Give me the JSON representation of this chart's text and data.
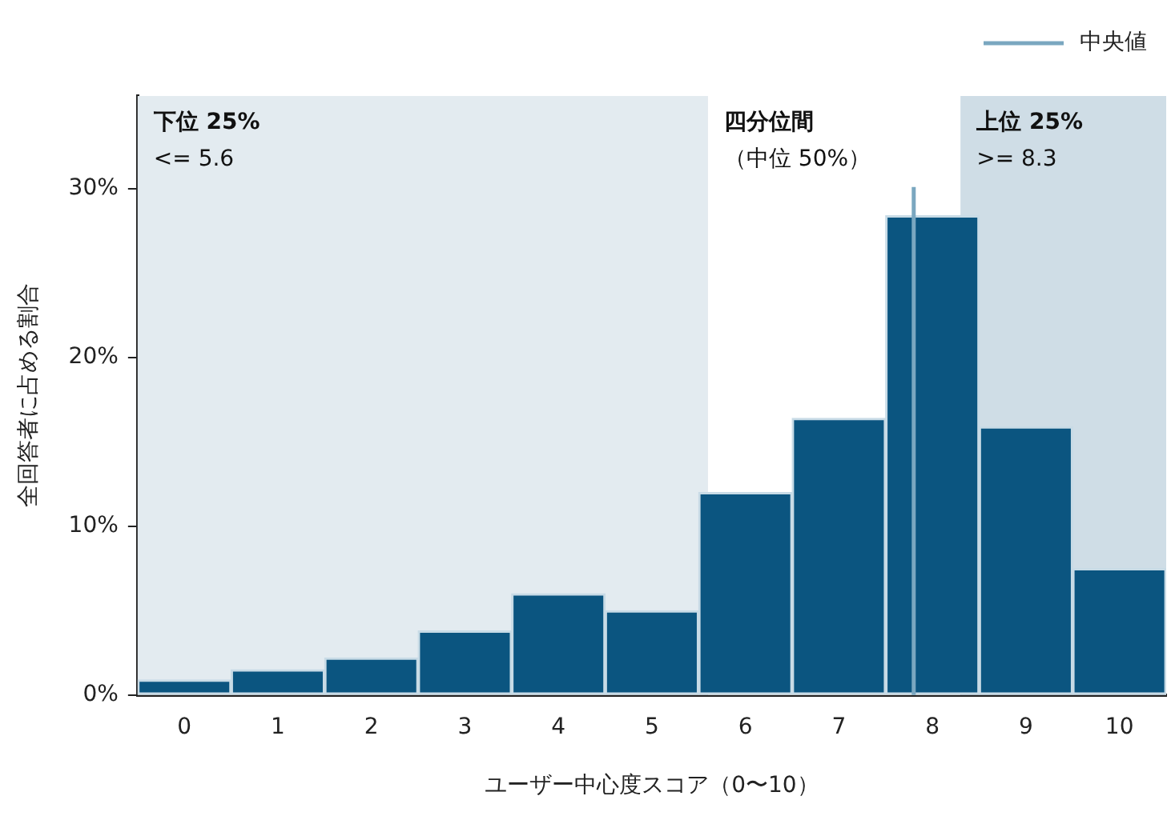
{
  "chart_data": {
    "type": "bar",
    "xlabel": "ユーザー中心度スコア（0〜10）",
    "ylabel": "全回答者に占める割合",
    "x": [
      0,
      1,
      2,
      3,
      4,
      5,
      6,
      7,
      8,
      9,
      10
    ],
    "values": [
      0.9,
      1.5,
      2.2,
      3.8,
      6.0,
      5.0,
      12.0,
      16.4,
      28.4,
      15.9,
      7.5
    ],
    "color": "#0b5580",
    "xlim": [
      -0.5,
      10.5
    ],
    "xticks": [
      0,
      1,
      2,
      3,
      4,
      5,
      6,
      7,
      8,
      9,
      10
    ],
    "ylim": [
      0,
      35.5
    ],
    "yticks": [
      {
        "value": 0,
        "label": "0%"
      },
      {
        "value": 10,
        "label": "10%"
      },
      {
        "value": 20,
        "label": "20%"
      },
      {
        "value": 30,
        "label": "30%"
      }
    ],
    "bands": [
      {
        "axis": "x",
        "from": -0.5,
        "to": 5.6,
        "label": "下位 25%",
        "color": "#e3ebf0"
      },
      {
        "axis": "x",
        "from": 5.6,
        "to": 8.3,
        "label": "四分位間",
        "color": "#ffffff"
      },
      {
        "axis": "x",
        "from": 8.3,
        "to": 10.5,
        "label": "上位 25%",
        "color": "#cfdde6"
      }
    ],
    "annotations": [
      {
        "text": "<= 5.6",
        "x": -0.5,
        "y": 32.4
      },
      {
        "text": "（中位 50%）",
        "x": 5.6,
        "y": 32.4
      },
      {
        "text": ">= 8.3",
        "x": 8.3,
        "y": 32.4
      }
    ],
    "ref_lines": [
      {
        "axis": "x",
        "value": 7.8,
        "label": "中央値",
        "color": "#7aa7c0"
      }
    ],
    "grid": false,
    "legend": "top right"
  }
}
